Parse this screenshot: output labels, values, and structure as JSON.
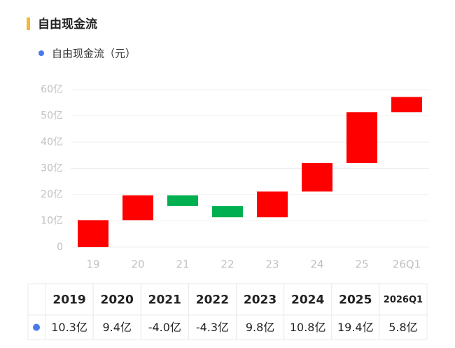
{
  "chart_data": {
    "type": "waterfall",
    "title": "自由现金流",
    "legend": "自由现金流（元）",
    "legend_color": "#4a78e8",
    "categories": [
      "19",
      "20",
      "21",
      "22",
      "23",
      "24",
      "25",
      "26Q1"
    ],
    "values": [
      10.3,
      9.4,
      -4.0,
      -4.3,
      9.8,
      10.8,
      19.4,
      5.8
    ],
    "value_labels": [
      "10.3亿",
      "9.4亿",
      "-4.0亿",
      "-4.3亿",
      "9.8亿",
      "10.8亿",
      "19.4亿",
      "5.8亿"
    ],
    "increase_color": "#ff0000",
    "decrease_color": "#00b050",
    "ylim": [
      0,
      60
    ],
    "yticks": [
      0,
      {
        "value": 10,
        "label": "10亿"
      },
      {
        "value": 20,
        "label": "20亿"
      },
      {
        "value": 30,
        "label": "30亿"
      },
      {
        "value": 40,
        "label": "40亿"
      },
      {
        "value": 50,
        "label": "50亿"
      },
      {
        "value": 60,
        "label": "60亿"
      }
    ],
    "grid": true
  },
  "table": {
    "columns": [
      "2019",
      "2020",
      "2021",
      "2022",
      "2023",
      "2024",
      "2025",
      "2026Q1"
    ]
  }
}
